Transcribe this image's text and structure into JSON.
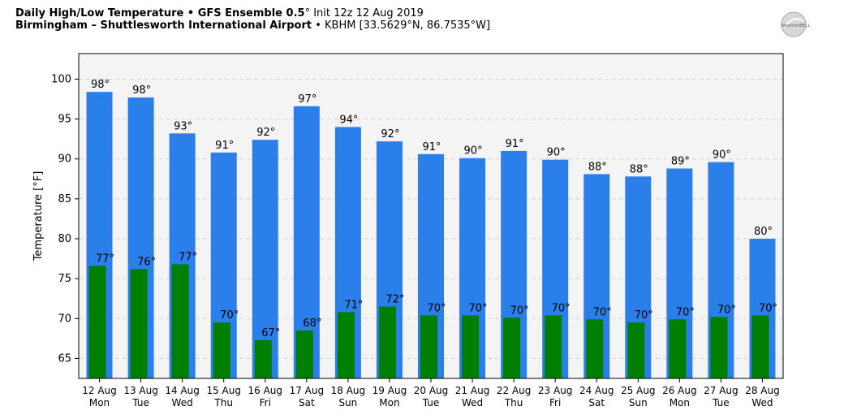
{
  "header": {
    "line1_bold": "Daily High/Low Temperature • GFS Ensemble 0.5",
    "line1_rest": "° Init 12z 12 Aug 2019",
    "line2_bold": "Birmingham – Shuttlesworth International Airport",
    "line2_rest": " • KBHM [33.5629°N, 86.7535°W]"
  },
  "logo": {
    "text": "WeatherBELL"
  },
  "chart_data": {
    "type": "bar",
    "ylabel": "Temperature [°F]",
    "ylim": [
      62.5,
      103.2
    ],
    "yticks": [
      65,
      70,
      75,
      80,
      85,
      90,
      95,
      100
    ],
    "grid": true,
    "categories": [
      [
        "12 Aug",
        "Mon"
      ],
      [
        "13 Aug",
        "Tue"
      ],
      [
        "14 Aug",
        "Wed"
      ],
      [
        "15 Aug",
        "Thu"
      ],
      [
        "16 Aug",
        "Fri"
      ],
      [
        "17 Aug",
        "Sat"
      ],
      [
        "18 Aug",
        "Sun"
      ],
      [
        "19 Aug",
        "Mon"
      ],
      [
        "20 Aug",
        "Tue"
      ],
      [
        "21 Aug",
        "Wed"
      ],
      [
        "22 Aug",
        "Thu"
      ],
      [
        "23 Aug",
        "Fri"
      ],
      [
        "24 Aug",
        "Sat"
      ],
      [
        "25 Aug",
        "Sun"
      ],
      [
        "26 Aug",
        "Mon"
      ],
      [
        "27 Aug",
        "Tue"
      ],
      [
        "28 Aug",
        "Wed"
      ]
    ],
    "series": [
      {
        "color": "#2a7fea",
        "values": [
          98.4,
          97.7,
          93.2,
          90.8,
          92.4,
          96.6,
          94.0,
          92.2,
          90.6,
          90.1,
          91.0,
          89.9,
          88.1,
          87.8,
          88.8,
          89.6,
          80.0
        ],
        "labels": [
          "98°",
          "98°",
          "93°",
          "91°",
          "92°",
          "97°",
          "94°",
          "92°",
          "91°",
          "90°",
          "91°",
          "90°",
          "88°",
          "88°",
          "89°",
          "90°",
          "80°"
        ]
      },
      {
        "color": "#007f00",
        "values": [
          76.6,
          76.2,
          76.8,
          69.5,
          67.3,
          68.5,
          70.8,
          71.5,
          70.4,
          70.4,
          70.1,
          70.4,
          69.9,
          69.5,
          69.9,
          70.2,
          70.4
        ],
        "labels": [
          "77°",
          "76°",
          "77°",
          "70°",
          "67°",
          "68°",
          "71°",
          "72°",
          "70°",
          "70°",
          "70°",
          "70°",
          "70°",
          "70°",
          "70°",
          "70°",
          "70°"
        ]
      }
    ]
  }
}
